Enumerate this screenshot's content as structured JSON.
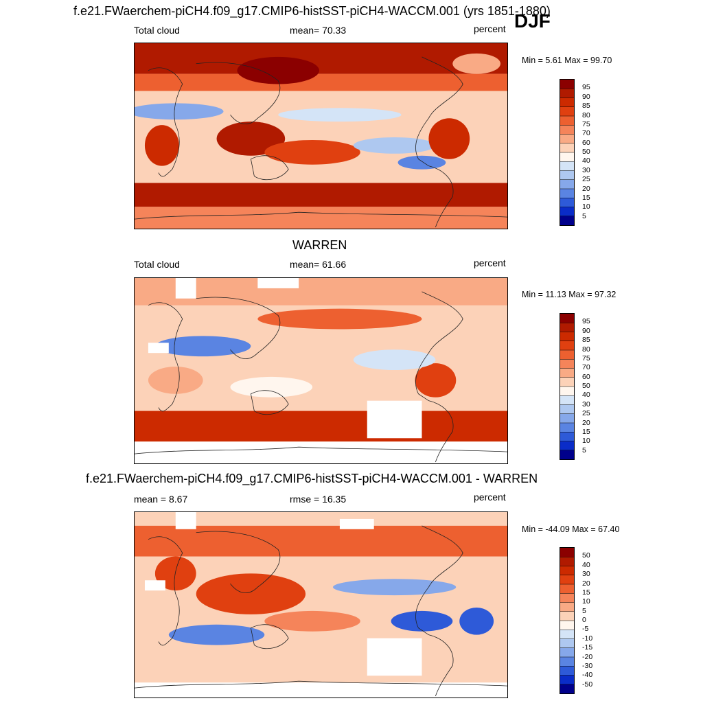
{
  "header": {
    "main_title": "f.e21.FWaerchem-piCH4.f09_g17.CMIP6-histSST-piCH4-WACCM.001 (yrs 1851-1880)",
    "season": "DJF"
  },
  "panels": [
    {
      "left_label": "Total cloud",
      "center_label": "mean=  70.33",
      "right_label": "percent",
      "minmax": "Min =   5.61 Max =  99.70"
    },
    {
      "title": "WARREN",
      "left_label": "Total cloud",
      "center_label": "mean=  61.66",
      "right_label": "percent",
      "minmax": "Min =  11.13 Max =  97.32"
    },
    {
      "title": "f.e21.FWaerchem-piCH4.f09_g17.CMIP6-histSST-piCH4-WACCM.001 - WARREN",
      "left_label": "mean =   8.67",
      "center_label": "rmse =  16.35",
      "right_label": "percent",
      "minmax": "Min = -44.09 Max =  67.40"
    }
  ],
  "colorbars": {
    "absolute": {
      "labels": [
        "95",
        "90",
        "85",
        "80",
        "75",
        "70",
        "60",
        "50",
        "40",
        "30",
        "25",
        "20",
        "15",
        "10",
        "5"
      ],
      "colors": [
        "#8b0000",
        "#b01a00",
        "#cc2a00",
        "#e04010",
        "#ed6030",
        "#f5845a",
        "#f9aa85",
        "#fcd2b8",
        "#fff6ee",
        "#d4e4f7",
        "#aec8f0",
        "#86a8ea",
        "#5a84e2",
        "#2e5ad8",
        "#0a2cc8",
        "#00008b"
      ]
    },
    "difference": {
      "labels": [
        "50",
        "40",
        "30",
        "20",
        "15",
        "10",
        "5",
        "0",
        "-5",
        "-10",
        "-15",
        "-20",
        "-30",
        "-40",
        "-50"
      ],
      "colors": [
        "#8b0000",
        "#b01a00",
        "#cc2a00",
        "#e04010",
        "#ed6030",
        "#f5845a",
        "#f9aa85",
        "#fcd2b8",
        "#fff6ee",
        "#d4e4f7",
        "#aec8f0",
        "#86a8ea",
        "#5a84e2",
        "#2e5ad8",
        "#0a2cc8",
        "#00008b"
      ]
    }
  },
  "chart_data": [
    {
      "type": "heatmap",
      "subtitle": "Total cloud",
      "units": "percent",
      "mean": 70.33,
      "min": 5.61,
      "max": 99.7,
      "levels": [
        5,
        10,
        15,
        20,
        25,
        30,
        40,
        50,
        60,
        70,
        75,
        80,
        85,
        90,
        95
      ]
    },
    {
      "type": "heatmap",
      "title": "WARREN",
      "subtitle": "Total cloud",
      "units": "percent",
      "mean": 61.66,
      "min": 11.13,
      "max": 97.32,
      "levels": [
        5,
        10,
        15,
        20,
        25,
        30,
        40,
        50,
        60,
        70,
        75,
        80,
        85,
        90,
        95
      ]
    },
    {
      "type": "heatmap",
      "title": "f.e21.FWaerchem-piCH4.f09_g17.CMIP6-histSST-piCH4-WACCM.001 - WARREN",
      "units": "percent",
      "mean": 8.67,
      "rmse": 16.35,
      "min": -44.09,
      "max": 67.4,
      "levels": [
        -50,
        -40,
        -30,
        -20,
        -15,
        -10,
        -5,
        0,
        5,
        10,
        15,
        20,
        30,
        40,
        50
      ]
    }
  ]
}
